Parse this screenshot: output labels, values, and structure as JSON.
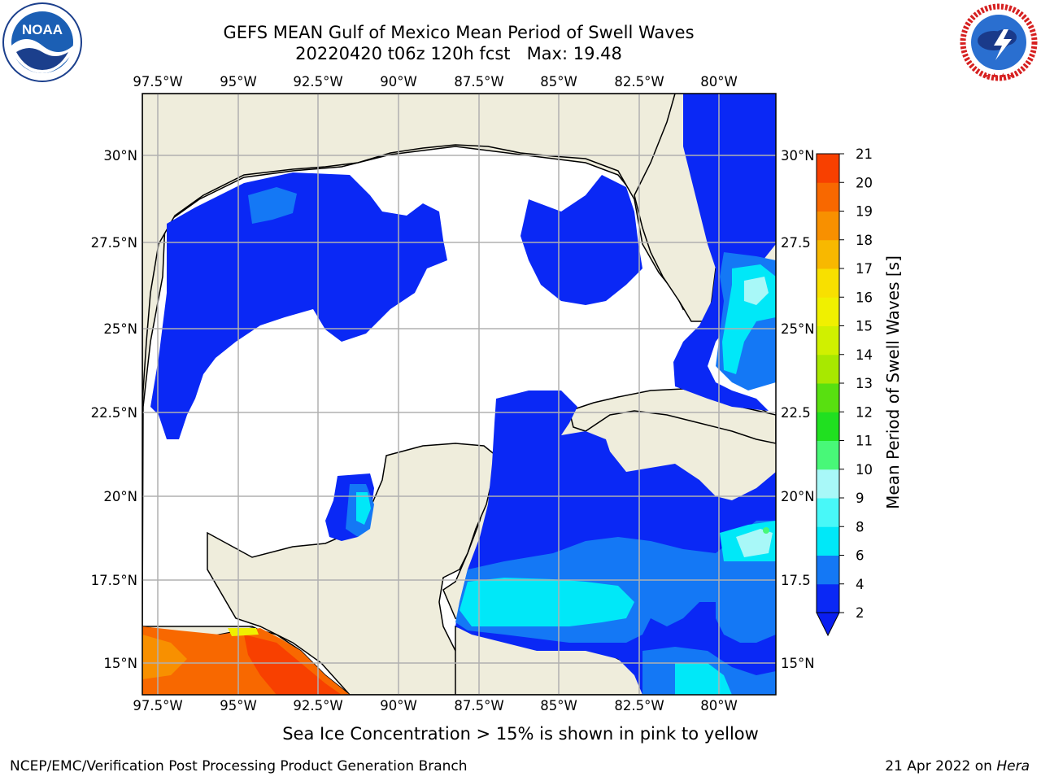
{
  "title": {
    "line1": "GEFS MEAN Gulf of Mexico Mean Period of Swell Waves",
    "line2": "20220420 t06z 120h fcst   Max: 19.48"
  },
  "logos": {
    "left": {
      "name": "noaa-logo",
      "text": "NOAA",
      "ring_text": "NATIONAL OCEANIC AND ATMOSPHERIC ADMINISTRATION · U.S. DEPARTMENT OF COMMERCE"
    },
    "right": {
      "name": "nws-logo",
      "ring_text": "NATIONAL WEATHER SERVICE"
    }
  },
  "map": {
    "lon_labels": [
      "97.5°W",
      "95°W",
      "92.5°W",
      "90°W",
      "87.5°W",
      "85°W",
      "82.5°W",
      "80°W"
    ],
    "lat_labels_left": [
      "30°N",
      "27.5°N",
      "25°N",
      "22.5°N",
      "20°N",
      "17.5°N",
      "15°N"
    ],
    "lat_labels_right": [
      "30°N",
      "27.5",
      "25°N",
      "22.5",
      "20°N",
      "17.5",
      "15°N"
    ],
    "land_color": "#efeddc",
    "water_color": "#ffffff",
    "gridline_color": "#b0b0b0"
  },
  "colorbar": {
    "label": "Mean Period of Swell Waves [s]",
    "ticks": [
      "2",
      "4",
      "6",
      "8",
      "9",
      "10",
      "11",
      "12",
      "13",
      "14",
      "15",
      "16",
      "17",
      "18",
      "19",
      "20",
      "21"
    ],
    "colors": [
      "#0a28f5",
      "#1478f5",
      "#00e8f8",
      "#48f8f8",
      "#a8f8f8",
      "#48f878",
      "#20e020",
      "#58e010",
      "#a8e800",
      "#d0f000",
      "#f0f000",
      "#f8e000",
      "#f8b800",
      "#f89000",
      "#f86800",
      "#f84000",
      "#f80000"
    ],
    "extend_color": "#0a1ef0"
  },
  "footer": {
    "note": "Sea Ice Concentration > 15% is shown in pink to yellow",
    "left": "NCEP/EMC/Verification Post Processing Product Generation Branch",
    "right_date": "21 Apr 2022 on ",
    "right_host": "Hera"
  }
}
